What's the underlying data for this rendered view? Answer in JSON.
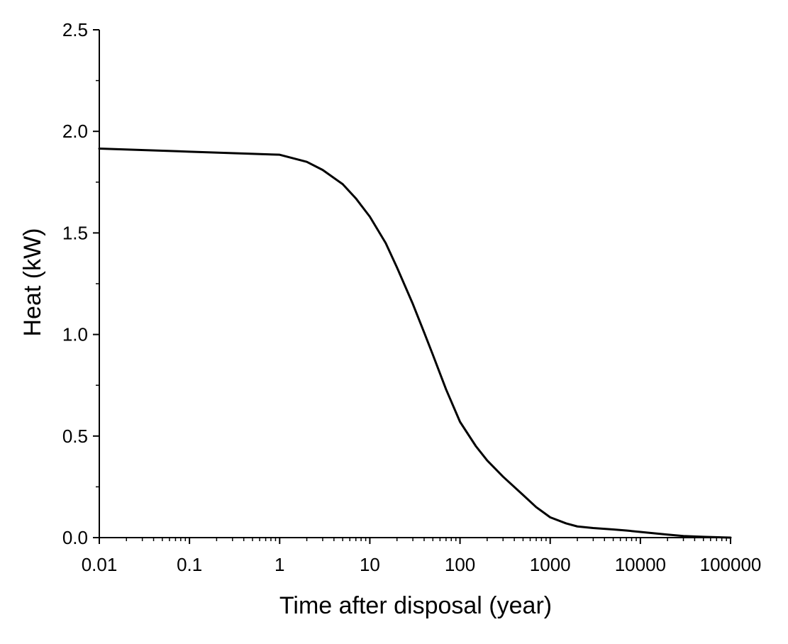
{
  "chart_data": {
    "type": "line",
    "title": "",
    "xlabel": "Time after disposal (year)",
    "ylabel": "Heat (kW)",
    "xscale": "log",
    "xlim": [
      0.01,
      100000
    ],
    "ylim": [
      0,
      2.5
    ],
    "x_tick_labels": [
      "0.01",
      "0.1",
      "1",
      "10",
      "100",
      "1000",
      "10000",
      "100000"
    ],
    "y_tick_labels": [
      "0.0",
      "0.5",
      "1.0",
      "1.5",
      "2.0",
      "2.5"
    ],
    "grid": false,
    "legend": "none",
    "line_color": "#000000",
    "series": [
      {
        "x": [
          0.01,
          0.1,
          1,
          2,
          3,
          5,
          7,
          10,
          15,
          20,
          30,
          40,
          50,
          70,
          100,
          150,
          200,
          300,
          500,
          700,
          1000,
          1500,
          2000,
          3000,
          5000,
          7000,
          10000,
          20000,
          30000,
          50000,
          100000
        ],
        "y": [
          1.915,
          1.9,
          1.885,
          1.85,
          1.81,
          1.74,
          1.67,
          1.58,
          1.45,
          1.33,
          1.15,
          1.01,
          0.9,
          0.73,
          0.57,
          0.45,
          0.38,
          0.3,
          0.21,
          0.15,
          0.1,
          0.07,
          0.055,
          0.047,
          0.04,
          0.035,
          0.028,
          0.015,
          0.008,
          0.004,
          0.0
        ]
      }
    ]
  }
}
